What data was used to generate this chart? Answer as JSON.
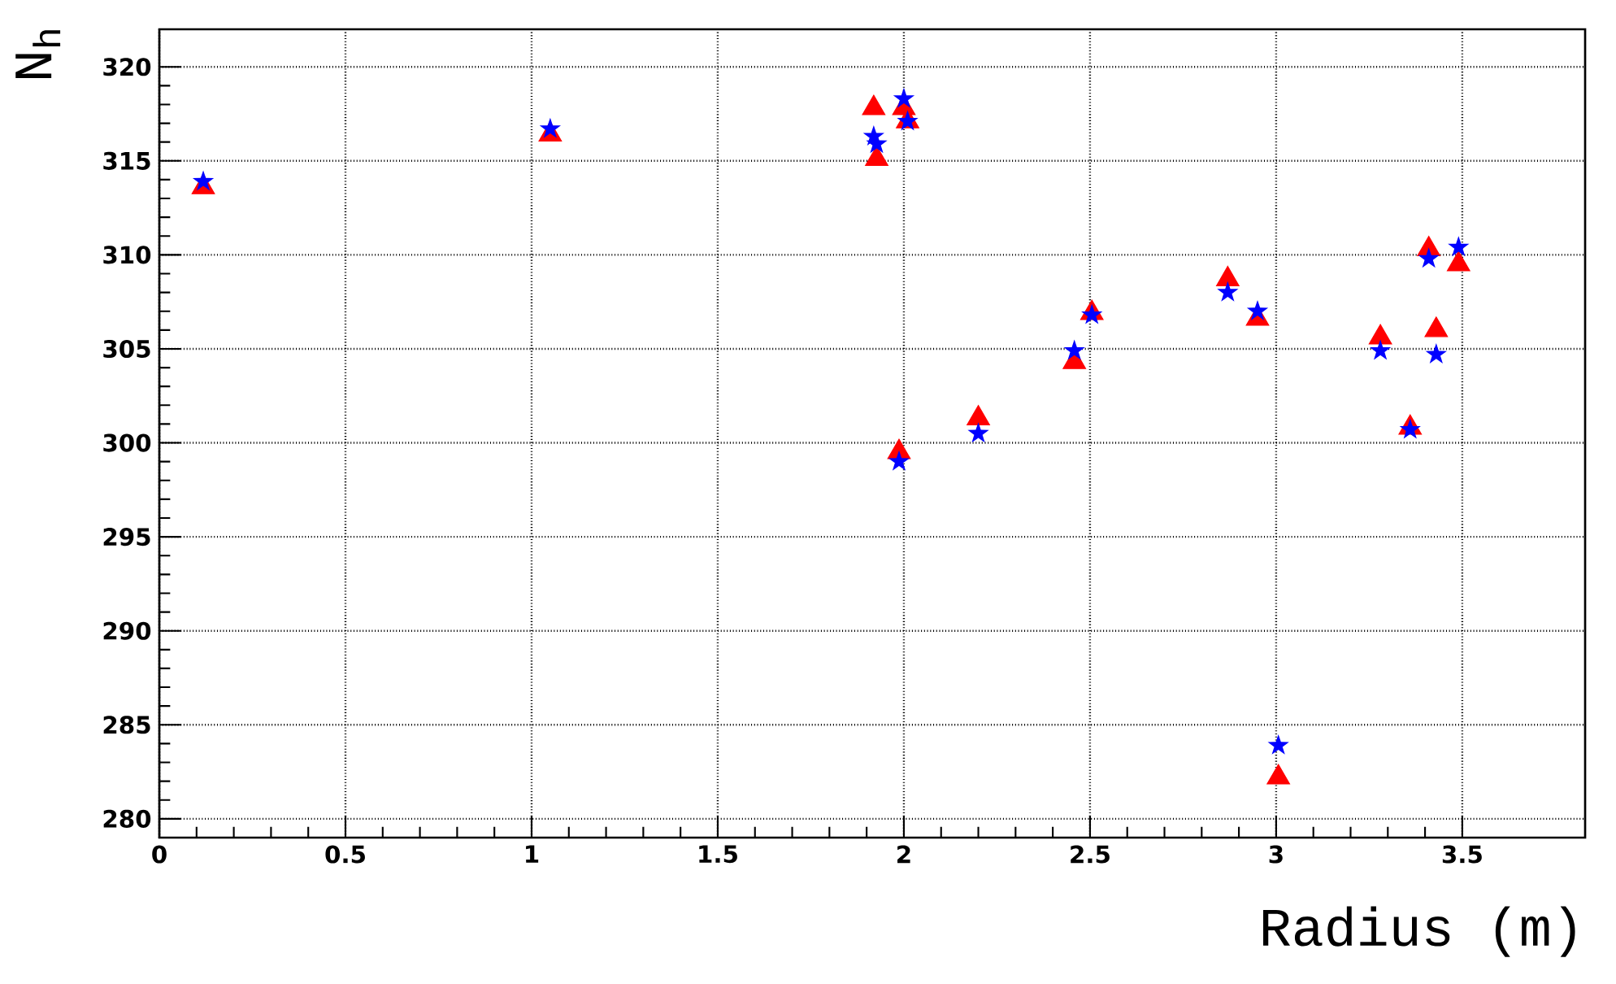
{
  "chart_data": {
    "type": "scatter",
    "xlabel": "Radius (m)",
    "ylabel": "N$_{h}$",
    "x": [
      0.118,
      1.05,
      1.919,
      1.927,
      1.987,
      2.0,
      2.01,
      2.2,
      2.458,
      2.505,
      2.87,
      2.95,
      3.006,
      3.28,
      3.36,
      3.41,
      3.43,
      3.49
    ],
    "series": [
      {
        "color": "#ff0000",
        "marker": "triangle",
        "values": [
          313.6,
          316.4,
          317.8,
          315.1,
          299.5,
          317.8,
          317.1,
          301.3,
          304.3,
          306.9,
          308.7,
          306.6,
          282.2,
          305.6,
          300.8,
          310.3,
          306.0,
          309.5
        ]
      },
      {
        "color": "#0000ff",
        "marker": "star",
        "values": [
          313.9,
          316.7,
          316.3,
          315.9,
          299.0,
          318.3,
          317.1,
          300.5,
          304.9,
          306.8,
          308.0,
          307.0,
          283.9,
          304.9,
          300.7,
          309.8,
          304.7,
          310.4
        ]
      }
    ],
    "xlim": [
      0,
      3.83
    ],
    "ylim": [
      279,
      322
    ],
    "xticks": [
      0,
      0.5,
      1,
      1.5,
      2,
      2.5,
      3,
      3.5
    ],
    "yticks": [
      280,
      285,
      290,
      295,
      300,
      305,
      310,
      315,
      320
    ],
    "grid": true
  }
}
